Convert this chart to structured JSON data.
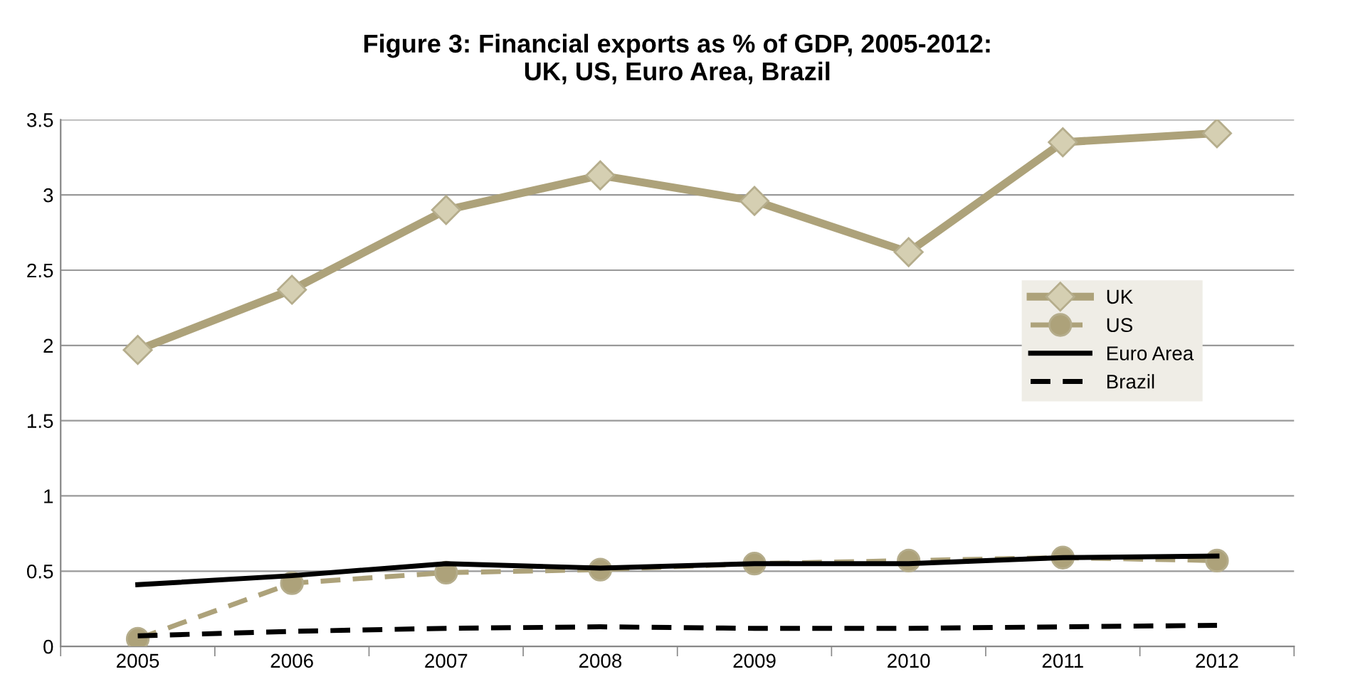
{
  "chart_data": {
    "type": "line",
    "title": "Figure 3: Financial exports as % of GDP, 2005-2012:\nUK, US, Euro Area, Brazil",
    "categories": [
      "2005",
      "2006",
      "2007",
      "2008",
      "2009",
      "2010",
      "2011",
      "2012"
    ],
    "series": [
      {
        "name": "UK",
        "color": "#ada27a",
        "marker": "diamond",
        "line_style": "solid",
        "values": [
          1.97,
          2.37,
          2.9,
          3.13,
          2.96,
          2.62,
          3.35,
          3.41
        ]
      },
      {
        "name": "US",
        "color": "#ada27a",
        "marker": "circle",
        "line_style": "dashed",
        "values": [
          0.05,
          0.42,
          0.49,
          0.51,
          0.55,
          0.57,
          0.59,
          0.57
        ]
      },
      {
        "name": "Euro Area",
        "color": "#000000",
        "marker": "none",
        "line_style": "solid",
        "values": [
          0.41,
          0.47,
          0.55,
          0.52,
          0.55,
          0.55,
          0.59,
          0.6
        ]
      },
      {
        "name": "Brazil",
        "color": "#000000",
        "marker": "none",
        "line_style": "dashed",
        "values": [
          0.07,
          0.1,
          0.12,
          0.13,
          0.12,
          0.12,
          0.13,
          0.14
        ]
      }
    ],
    "ylim": [
      0,
      3.5
    ],
    "yticks": [
      0,
      0.5,
      1,
      1.5,
      2,
      2.5,
      3,
      3.5
    ],
    "grid": "y",
    "legend": "right"
  }
}
